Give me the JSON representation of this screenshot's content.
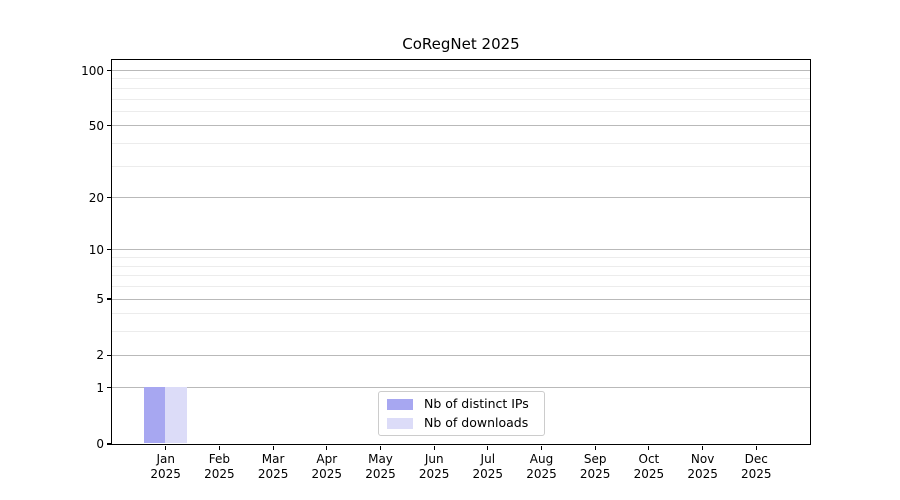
{
  "figure": {
    "title": "CoRegNet 2025"
  },
  "chart_data": {
    "type": "bar",
    "title": "CoRegNet 2025",
    "categories": [
      "Jan 2025",
      "Feb 2025",
      "Mar 2025",
      "Apr 2025",
      "May 2025",
      "Jun 2025",
      "Jul 2025",
      "Aug 2025",
      "Sep 2025",
      "Oct 2025",
      "Nov 2025",
      "Dec 2025"
    ],
    "series": [
      {
        "name": "Nb of distinct IPs",
        "color": "#a7a7f1",
        "values": [
          1,
          0,
          0,
          0,
          0,
          0,
          0,
          0,
          0,
          0,
          0,
          0
        ]
      },
      {
        "name": "Nb of downloads",
        "color": "#dcdcf8",
        "values": [
          1,
          0,
          0,
          0,
          0,
          0,
          0,
          0,
          0,
          0,
          0,
          0
        ]
      }
    ],
    "xlabel": "",
    "ylabel": "",
    "y_scale": "log1p",
    "y_axis_ticks": [
      0,
      1,
      2,
      5,
      10,
      20,
      50,
      100
    ],
    "y_minor_gridlines": [
      3,
      4,
      6,
      7,
      8,
      9,
      30,
      40,
      60,
      70,
      80,
      90
    ],
    "ylim": [
      0,
      114
    ],
    "grid": "horizontal-major-and-minor",
    "legend_position": "lower center"
  },
  "colors": {
    "bar_distinct_ips": "#a7a7f1",
    "bar_downloads": "#dcdcf8",
    "major_grid": "#b9b9b9",
    "minor_grid": "#ececec",
    "axis": "#000000",
    "legend_border": "#cccccc",
    "background": "#ffffff"
  }
}
